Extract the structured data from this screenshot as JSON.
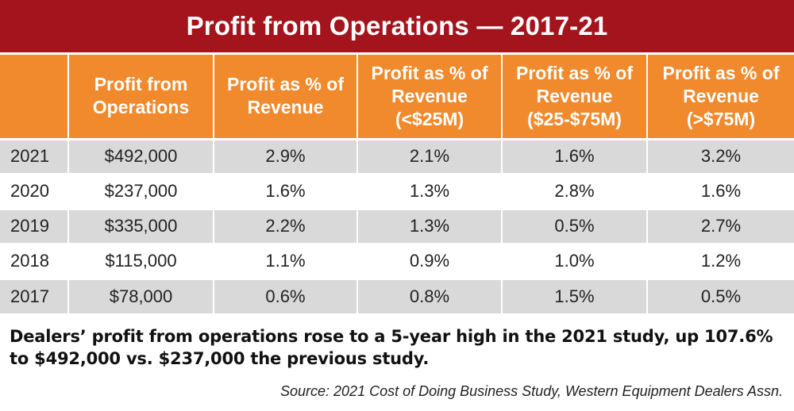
{
  "title": "Profit from Operations — 2017-21",
  "chart_data": {
    "type": "table",
    "title": "Profit from Operations — 2017-21",
    "columns": [
      "",
      "Profit from Operations",
      "Profit as % of Revenue",
      "Profit as % of Revenue (<$25M)",
      "Profit as % of Revenue ($25-$75M)",
      "Profit as % of Revenue (>$75M)"
    ],
    "rows": [
      [
        "2021",
        "$492,000",
        "2.9%",
        "2.1%",
        "1.6%",
        "3.2%"
      ],
      [
        "2020",
        "$237,000",
        "1.6%",
        "1.3%",
        "2.8%",
        "1.6%"
      ],
      [
        "2019",
        "$335,000",
        "2.2%",
        "1.3%",
        "0.5%",
        "2.7%"
      ],
      [
        "2018",
        "$115,000",
        "1.1%",
        "0.9%",
        "1.0%",
        "1.2%"
      ],
      [
        "2017",
        "$78,000",
        "0.6%",
        "0.8%",
        "1.5%",
        "0.5%"
      ]
    ]
  },
  "caption": "Dealers’ profit from operations rose to a 5-year high in the 2021 study, up 107.6% to $492,000 vs. $237,000 the previous study.",
  "source": "Source: 2021 Cost of Doing Business Study, Western Equipment Dealers Assn.",
  "colors": {
    "title_bar": "#a3141c",
    "header": "#f08a2c",
    "row_shade": "#d9d9d9"
  }
}
